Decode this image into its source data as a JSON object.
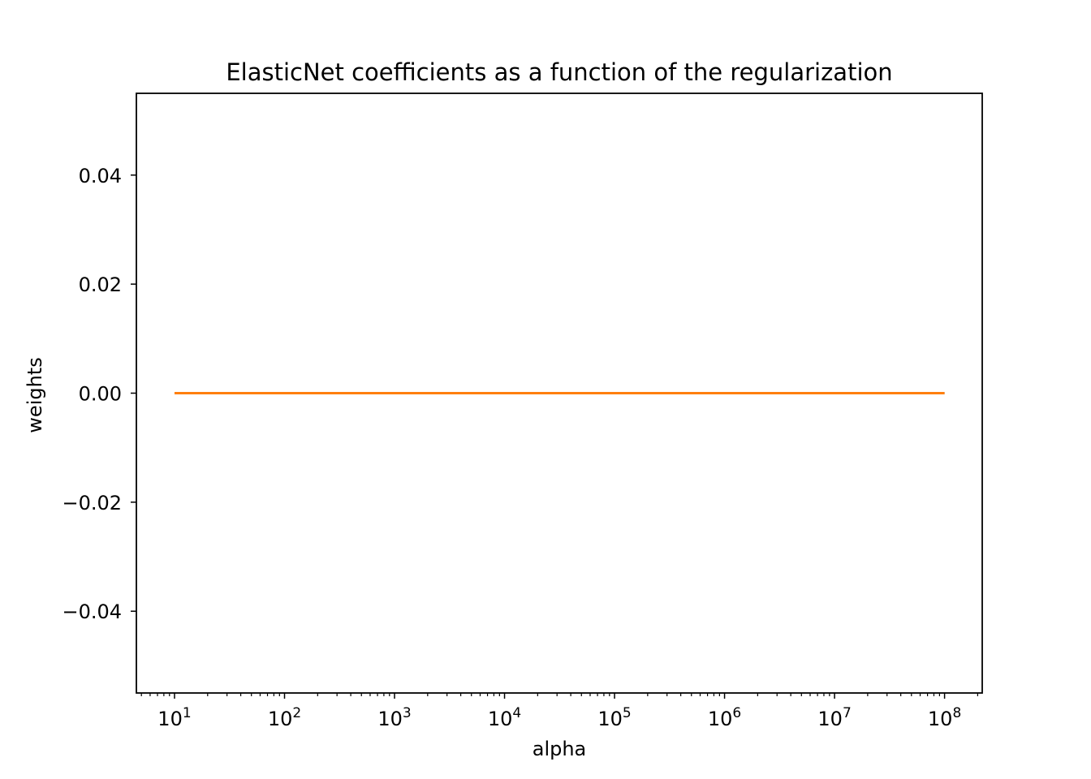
{
  "chart_data": {
    "type": "line",
    "title": "ElasticNet coefficients as a function of the regularization",
    "xlabel": "alpha",
    "ylabel": "weights",
    "xscale": "log",
    "xlim": [
      4.5,
      220000000
    ],
    "ylim": [
      -0.055,
      0.055
    ],
    "x_ticks": [
      {
        "value": 10,
        "base": "10",
        "exp": "1"
      },
      {
        "value": 100,
        "base": "10",
        "exp": "2"
      },
      {
        "value": 1000,
        "base": "10",
        "exp": "3"
      },
      {
        "value": 10000,
        "base": "10",
        "exp": "4"
      },
      {
        "value": 100000,
        "base": "10",
        "exp": "5"
      },
      {
        "value": 1000000,
        "base": "10",
        "exp": "6"
      },
      {
        "value": 10000000,
        "base": "10",
        "exp": "7"
      },
      {
        "value": 100000000,
        "base": "10",
        "exp": "8"
      }
    ],
    "y_ticks": [
      {
        "value": 0.04,
        "label": "0.04"
      },
      {
        "value": 0.02,
        "label": "0.02"
      },
      {
        "value": 0.0,
        "label": "0.00"
      },
      {
        "value": -0.02,
        "label": "−0.02"
      },
      {
        "value": -0.04,
        "label": "−0.04"
      }
    ],
    "grid": false,
    "series": [
      {
        "color": "#1f77b4",
        "x": [
          10,
          100000000
        ],
        "y": [
          0.0,
          0.0
        ]
      },
      {
        "color": "#ff7f0e",
        "x": [
          10,
          100000000
        ],
        "y": [
          0.0,
          0.0
        ]
      }
    ]
  }
}
